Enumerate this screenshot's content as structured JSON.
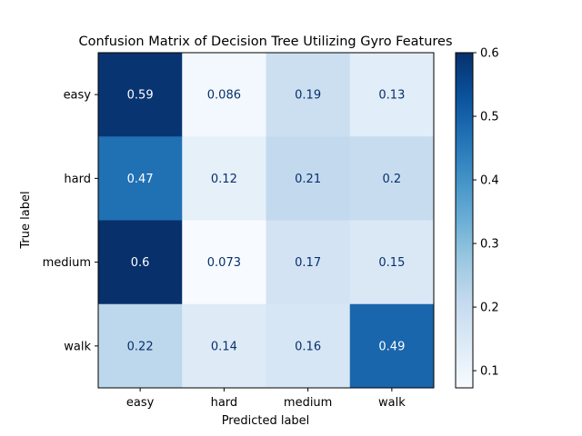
{
  "chart_data": {
    "type": "heatmap",
    "title": "Confusion Matrix of Decision Tree Utilizing Gyro Features",
    "xlabel": "Predicted label",
    "ylabel": "True label",
    "x_categories": [
      "easy",
      "hard",
      "medium",
      "walk"
    ],
    "y_categories": [
      "easy",
      "hard",
      "medium",
      "walk"
    ],
    "values": [
      [
        0.59,
        0.086,
        0.19,
        0.13
      ],
      [
        0.47,
        0.12,
        0.21,
        0.2
      ],
      [
        0.6,
        0.073,
        0.17,
        0.15
      ],
      [
        0.22,
        0.14,
        0.16,
        0.49
      ]
    ],
    "cell_labels": [
      [
        "0.59",
        "0.086",
        "0.19",
        "0.13"
      ],
      [
        "0.47",
        "0.12",
        "0.21",
        "0.2"
      ],
      [
        "0.6",
        "0.073",
        "0.17",
        "0.15"
      ],
      [
        "0.22",
        "0.14",
        "0.16",
        "0.49"
      ]
    ],
    "colormap": "Blues",
    "colorbar": {
      "range": [
        0.073,
        0.6
      ],
      "ticks": [
        0.1,
        0.2,
        0.3,
        0.4,
        0.5,
        0.6
      ],
      "tick_labels": [
        "0.1",
        "0.2",
        "0.3",
        "0.4",
        "0.5",
        "0.6"
      ]
    },
    "grid": false
  }
}
